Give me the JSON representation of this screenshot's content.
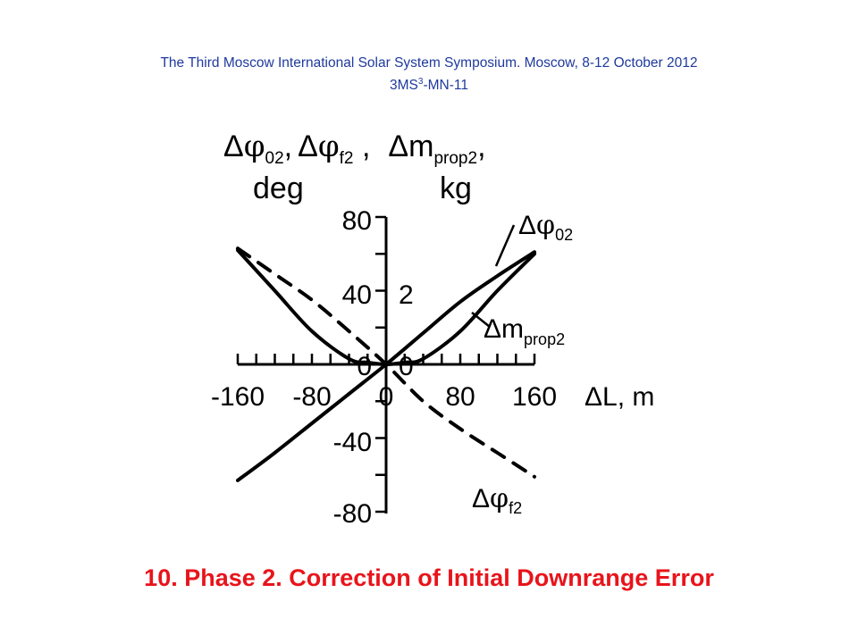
{
  "header": {
    "line1": "The Third  Moscow International Solar System Symposium. Moscow, 8-12 October 2012",
    "code_prefix": "3MS",
    "code_sup": "3",
    "code_suffix": "-MN-11"
  },
  "footer": {
    "title": "10. Phase 2. Correction of Initial Downrange Error"
  },
  "colors": {
    "header": "#1f3a9e",
    "footer": "#e8141b",
    "ink": "#000000"
  },
  "chart_data": {
    "type": "line",
    "ylabel": {
      "delta": "Δ",
      "phi": "φ",
      "sub02": "02",
      "comma1": ",",
      "sub_f2": "f2",
      "sep": " ,",
      "m": "m",
      "sub_prop2": "prop2",
      "comma2": ",",
      "unit_left": "deg",
      "unit_right": "kg"
    },
    "xlabel": {
      "delta": "Δ",
      "text": "L, m"
    },
    "x_ticks": [
      "-160",
      "-80",
      "0",
      "80",
      "160"
    ],
    "y_ticks_left": [
      "80",
      "40",
      "0",
      "-40",
      "-80"
    ],
    "y_ticks_right": [
      "2",
      "0"
    ],
    "xlim": [
      -160,
      160
    ],
    "ylim": [
      -80,
      80
    ],
    "right_axis_scale": "40 deg per 2 kg",
    "series": [
      {
        "name": "Δφ02",
        "label": {
          "delta": "Δ",
          "phi": "φ",
          "sub": "02"
        },
        "style": "solid",
        "x": [
          -160,
          -120,
          -80,
          -40,
          0,
          40,
          80,
          120,
          160
        ],
        "y": [
          -63,
          -48,
          -32,
          -16,
          0,
          17,
          34,
          48,
          61
        ]
      },
      {
        "name": "Δφf2",
        "label": {
          "delta": "Δ",
          "phi": "φ",
          "sub": "f2"
        },
        "style": "dashed",
        "x": [
          -160,
          -120,
          -80,
          -40,
          0,
          40,
          80,
          120,
          160
        ],
        "y": [
          63,
          49,
          35,
          18,
          0,
          -20,
          -35,
          -48,
          -61
        ]
      },
      {
        "name": "Δmprop2",
        "label": {
          "delta": "Δ",
          "m": "m",
          "sub": "prop2"
        },
        "style": "solid",
        "x": [
          -160,
          -120,
          -80,
          -40,
          -20,
          0,
          20,
          40,
          80,
          120,
          160
        ],
        "y": [
          62,
          40,
          18,
          3,
          1,
          0,
          1,
          3,
          18,
          40,
          60
        ]
      }
    ]
  }
}
